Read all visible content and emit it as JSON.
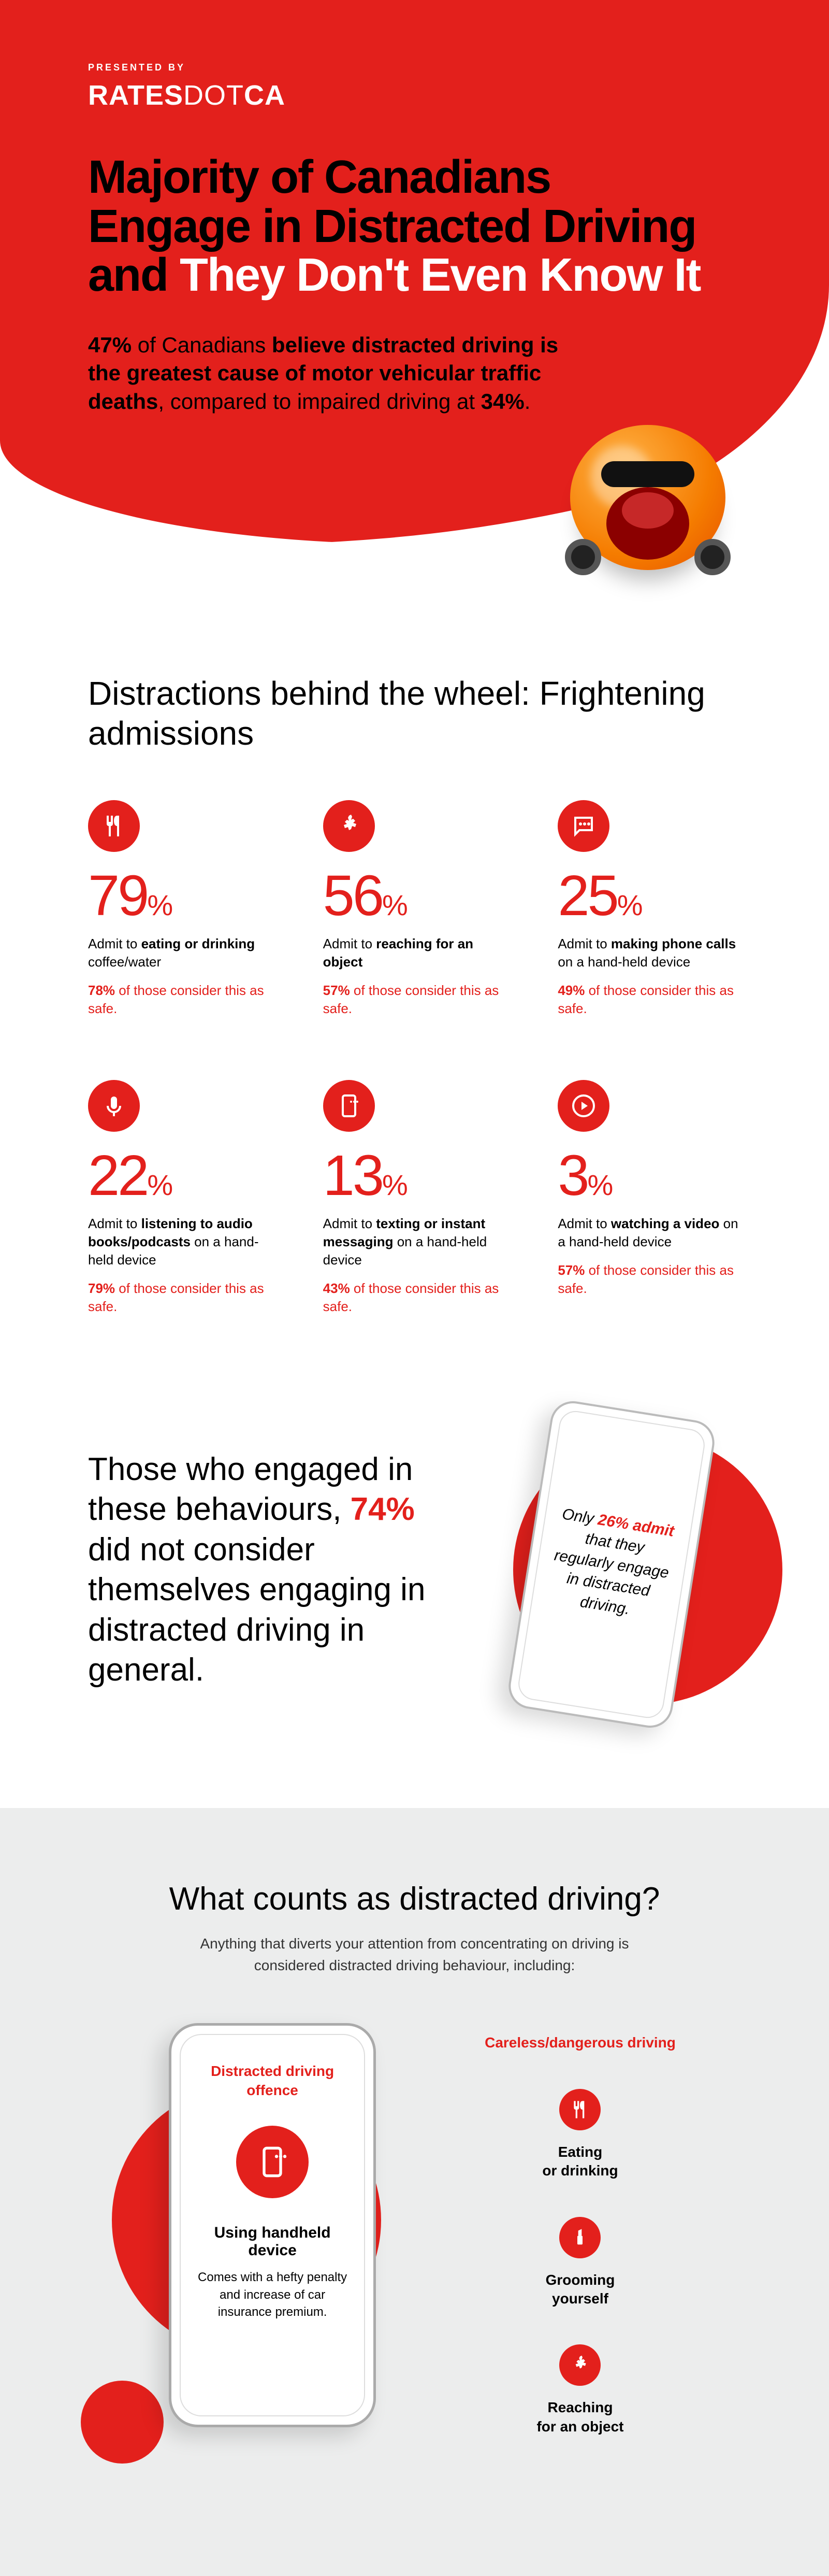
{
  "brand": {
    "presented": "PRESENTED BY",
    "logo_bold1": "RATES",
    "logo_dot": "DOT",
    "logo_bold2": "CA"
  },
  "headline": {
    "part1": "Majority of Canadians Engage in Distracted Driving and ",
    "part2": "They Don't Even Know It"
  },
  "subhead": {
    "pct1": "47%",
    "text1": " of Canadians ",
    "bold1": "believe distracted driving is the greatest cause of motor vehicular traffic deaths",
    "text2": ", compared to impaired driving at ",
    "pct2": "34%",
    "text3": "."
  },
  "admissions": {
    "title": "Distractions behind the wheel: Frightening admissions",
    "items": [
      {
        "pct": "79",
        "desc_pre": "Admit to ",
        "desc_bold": "eating or drinking",
        "desc_post": " coffee/water",
        "safe_pct": "78%",
        "safe_text": " of those consider this as safe.",
        "icon": "utensils"
      },
      {
        "pct": "56",
        "desc_pre": "Admit to ",
        "desc_bold": "reaching for an object",
        "desc_post": "",
        "safe_pct": "57%",
        "safe_text": " of those consider this as safe.",
        "icon": "hand"
      },
      {
        "pct": "25",
        "desc_pre": "Admit to ",
        "desc_bold": "making phone calls",
        "desc_post": " on a hand-held device",
        "safe_pct": "49%",
        "safe_text": " of those consider this as safe.",
        "icon": "chat"
      },
      {
        "pct": "22",
        "desc_pre": "Admit to ",
        "desc_bold": "listening to audio books/podcasts",
        "desc_post": " on a hand-held device",
        "safe_pct": "79%",
        "safe_text": " of those consider this as safe.",
        "icon": "mic"
      },
      {
        "pct": "13",
        "desc_pre": "Admit to ",
        "desc_bold": "texting or instant messaging",
        "desc_post": " on a hand-held device",
        "safe_pct": "43%",
        "safe_text": " of those consider this as safe.",
        "icon": "phonemsg"
      },
      {
        "pct": "3",
        "desc_pre": "Admit to ",
        "desc_bold": "watching a video",
        "desc_post": " on a hand-held device",
        "safe_pct": "57%",
        "safe_text": " of those consider this as safe.",
        "icon": "play"
      }
    ]
  },
  "engage": {
    "text1": "Those who engaged in these behaviours, ",
    "pct": "74%",
    "text2": " did not consider themselves engaging in distracted driving in general.",
    "phone_t1": "Only ",
    "phone_pct": "26% admit",
    "phone_t2": " that they regularly engage in distracted driving."
  },
  "counts": {
    "title": "What counts as distracted driving?",
    "sub": "Anything that diverts your attention from concentrating on driving is considered distracted driving behaviour, including:",
    "offence_label": "Distracted driving offence",
    "offence_title": "Using handheld device",
    "offence_desc": "Comes with a hefty penalty and increase of car insurance premium.",
    "careless_label": "Careless/dangerous driving",
    "careless_items": [
      {
        "label": "Eating or drinking",
        "icon": "utensils"
      },
      {
        "label": "Grooming yourself",
        "icon": "lipstick"
      },
      {
        "label": "Reaching for an object",
        "icon": "hand"
      }
    ]
  },
  "colors": {
    "red": "#e3201c",
    "grey_bg": "#eceded"
  }
}
